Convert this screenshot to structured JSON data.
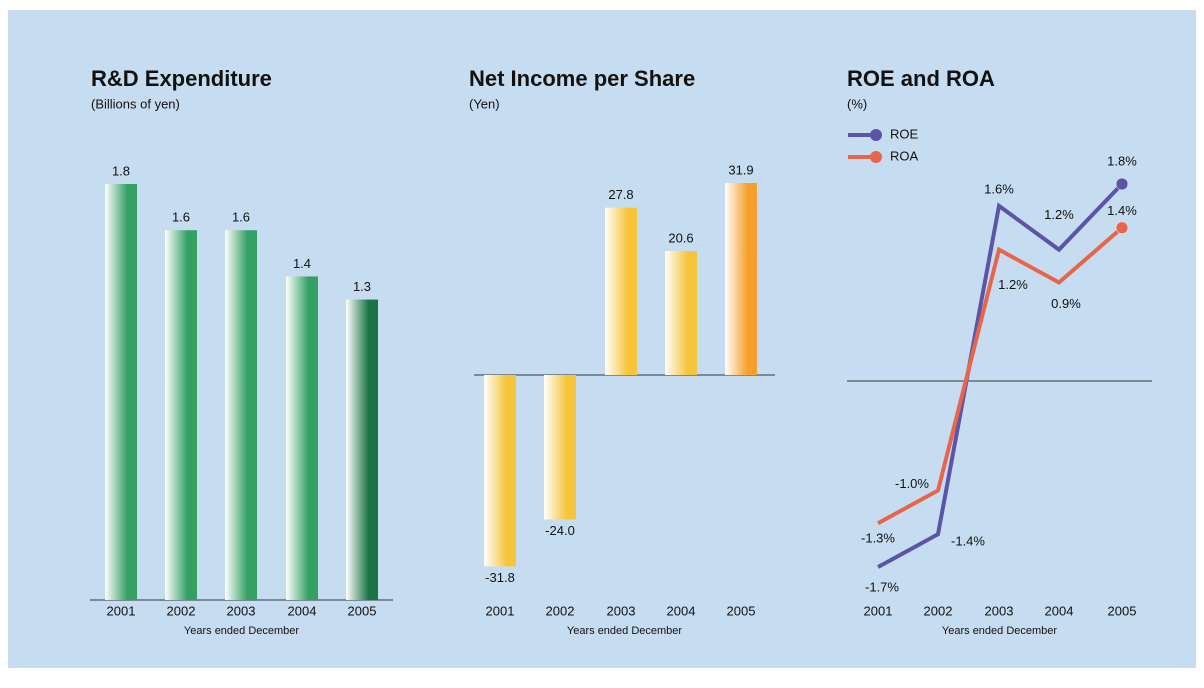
{
  "chart_data": [
    {
      "type": "bar",
      "title": "R&D Expenditure",
      "subtitle": "(Billions of yen)",
      "x_label": "Years ended December",
      "categories": [
        "2001",
        "2002",
        "2003",
        "2004",
        "2005"
      ],
      "values": [
        1.8,
        1.6,
        1.6,
        1.4,
        1.3
      ],
      "colors": [
        "#34a064",
        "#34a064",
        "#34a064",
        "#34a064",
        "#1b7446"
      ]
    },
    {
      "type": "bar",
      "title": "Net Income per Share",
      "subtitle": "(Yen)",
      "x_label": "Years ended December",
      "categories": [
        "2001",
        "2002",
        "2003",
        "2004",
        "2005"
      ],
      "values": [
        -31.8,
        -24.0,
        27.8,
        20.6,
        31.9
      ],
      "value_labels": [
        "-31.8",
        "-24.0",
        "27.8",
        "20.6",
        "31.9"
      ],
      "colors": [
        "#f6c53c",
        "#f6c53c",
        "#f6c53c",
        "#f6c53c",
        "#f5a02c"
      ]
    },
    {
      "type": "line",
      "title": "ROE and ROA",
      "subtitle": "(%)",
      "x_label": "Years ended December",
      "categories": [
        "2001",
        "2002",
        "2003",
        "2004",
        "2005"
      ],
      "series": [
        {
          "name": "ROE",
          "color": "#5a55a8",
          "values": [
            -1.7,
            -1.4,
            1.6,
            1.2,
            1.8
          ],
          "value_labels": [
            "-1.7%",
            "-1.4%",
            "1.6%",
            "1.2%",
            "1.8%"
          ]
        },
        {
          "name": "ROA",
          "color": "#e8644a",
          "values": [
            -1.3,
            -1.0,
            1.2,
            0.9,
            1.4
          ],
          "value_labels": [
            "-1.3%",
            "-1.0%",
            "1.2%",
            "0.9%",
            "1.4%"
          ]
        }
      ]
    }
  ]
}
